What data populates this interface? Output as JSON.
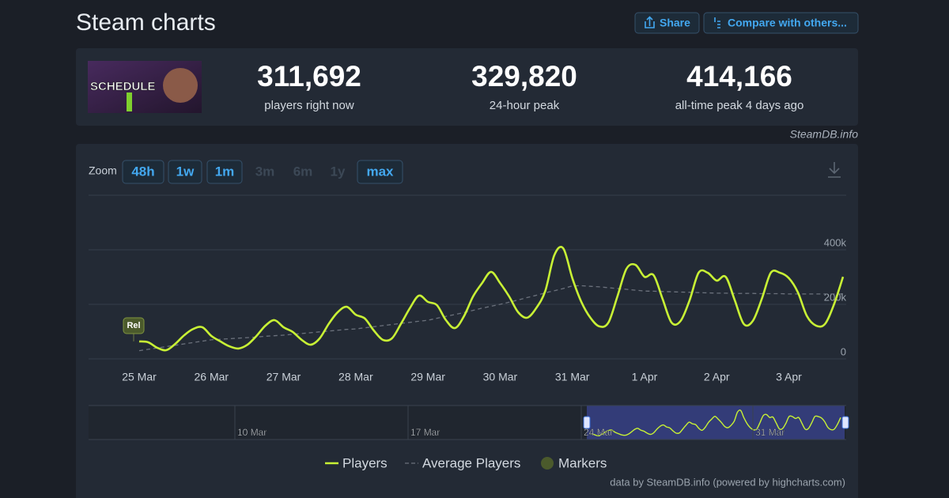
{
  "header": {
    "title": "Steam charts",
    "share": "Share",
    "compare": "Compare with others..."
  },
  "summary": {
    "thumbnail_text": "SCHEDULE",
    "stats": [
      {
        "value": "311,692",
        "label": "players right now"
      },
      {
        "value": "329,820",
        "label": "24-hour peak"
      },
      {
        "value": "414,166",
        "label": "all-time peak 4 days ago"
      }
    ],
    "source": "SteamDB.info"
  },
  "chart_data": {
    "type": "line",
    "zoom_label": "Zoom",
    "zoom_options": [
      "48h",
      "1w",
      "1m",
      "3m",
      "6m",
      "1y",
      "max"
    ],
    "categories": [
      "25 Mar",
      null,
      null,
      null,
      null,
      null,
      null,
      null,
      "26 Mar",
      null,
      null,
      null,
      null,
      null,
      null,
      null,
      "27 Mar",
      null,
      null,
      null,
      null,
      null,
      null,
      null,
      "28 Mar",
      null,
      null,
      null,
      null,
      null,
      null,
      null,
      "29 Mar",
      null,
      null,
      null,
      null,
      null,
      null,
      null,
      "30 Mar",
      null,
      null,
      null,
      null,
      null,
      null,
      null,
      "31 Mar",
      null,
      null,
      null,
      null,
      null,
      null,
      null,
      "1 Apr",
      null,
      null,
      null,
      null,
      null,
      null,
      null,
      "2 Apr",
      null,
      null,
      null,
      null,
      null,
      null,
      null,
      "3 Apr",
      null,
      null,
      null,
      null,
      null,
      null
    ],
    "series": [
      {
        "name": "Players",
        "color": "#c8f135",
        "values": [
          64000,
          61000,
          41000,
          32000,
          55000,
          87000,
          110000,
          116000,
          84000,
          64000,
          46000,
          38000,
          52000,
          84000,
          122000,
          142000,
          116000,
          99000,
          70000,
          52000,
          75000,
          128000,
          171000,
          191000,
          162000,
          148000,
          104000,
          70000,
          75000,
          128000,
          186000,
          232000,
          209000,
          197000,
          142000,
          113000,
          157000,
          229000,
          278000,
          319000,
          278000,
          229000,
          171000,
          151000,
          186000,
          249000,
          380000,
          405000,
          296000,
          209000,
          151000,
          119000,
          133000,
          229000,
          330000,
          345000,
          301000,
          307000,
          220000,
          133000,
          139000,
          215000,
          316000,
          316000,
          287000,
          301000,
          215000,
          128000,
          139000,
          220000,
          316000,
          316000,
          296000,
          244000,
          157000,
          122000,
          128000,
          200000,
          301000
        ]
      },
      {
        "name": "Average Players",
        "color": "#6b717c",
        "dashed": true,
        "values": [
          30000,
          35000,
          40000,
          45000,
          50000,
          55000,
          60000,
          65000,
          70000,
          72000,
          74000,
          76000,
          78000,
          80000,
          83000,
          85000,
          87000,
          90000,
          93000,
          96000,
          99000,
          102000,
          105000,
          108000,
          110000,
          114000,
          118000,
          122000,
          126000,
          130000,
          134000,
          138000,
          142000,
          149000,
          156000,
          163000,
          170000,
          178000,
          186000,
          193000,
          200000,
          208000,
          216000,
          225000,
          233000,
          242000,
          250000,
          258000,
          267000,
          268000,
          266000,
          264000,
          261000,
          258000,
          255000,
          252000,
          249000,
          248000,
          247000,
          246000,
          245000,
          244000,
          243000,
          242000,
          241000,
          241000,
          240000,
          240000,
          240000,
          239000,
          239000,
          239000,
          238000,
          238000,
          238000,
          238000,
          238000,
          238000,
          238000
        ]
      }
    ],
    "ylim": [
      0,
      600000
    ],
    "yticks": [
      0,
      {
        "value": 200000,
        "label": "200k"
      },
      {
        "value": 400000,
        "label": "400k"
      }
    ],
    "grid": true,
    "annotation": "Rel",
    "marker_legend": "Markers",
    "navigator_labels": [
      "10 Mar",
      "17 Mar",
      "24 Mar",
      "31 Mar"
    ],
    "credits": "data by SteamDB.info (powered by highcharts.com)"
  }
}
